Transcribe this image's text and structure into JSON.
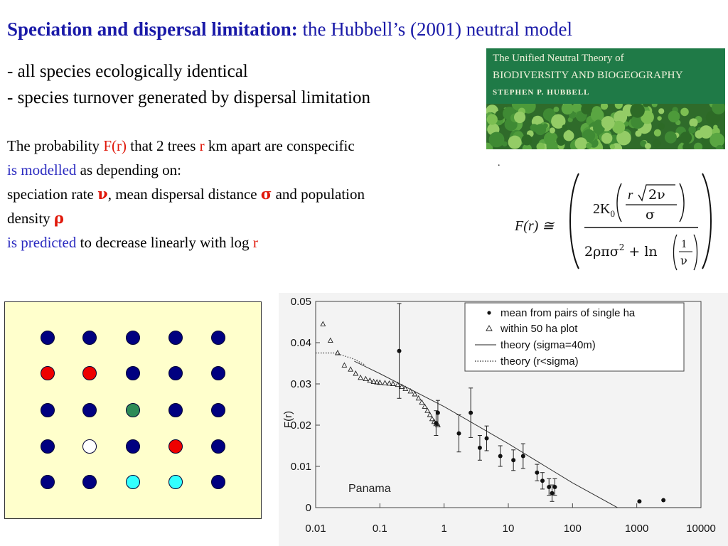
{
  "title": {
    "bold": "Speciation and dispersal limitation:",
    "rest": " the Hubbell’s (2001) neutral model"
  },
  "bullets": [
    "- all species ecologically identical",
    "- species turnover generated by dispersal limitation"
  ],
  "paragraph": {
    "l1_a": "The probability ",
    "l1_fr": "F(r)",
    "l1_b": " that 2 trees ",
    "l1_r": "r",
    "l1_c": " km apart are conspecific",
    "l2_a": "is modelled",
    "l2_b": " as depending on:",
    "l3_a": "speciation rate ",
    "l3_nu": "ν",
    "l3_b": ", mean dispersal distance ",
    "l3_sigma": "σ",
    "l3_c": " and population",
    "l4_a": "density ",
    "l4_rho": "ρ",
    "l5_a": "is predicted",
    "l5_b": " to decrease linearly with log ",
    "l5_r": "r"
  },
  "book": {
    "line1": "The Unified Neutral Theory of",
    "line2": "BIODIVERSITY AND BIOGEOGRAPHY",
    "author": "STEPHEN P. HUBBELL"
  },
  "stray_dot": ".",
  "formula": {
    "lhs": "F(r) ≅",
    "num_a": "2K",
    "num_sub": "0",
    "num_r": "r",
    "num_root": "2ν",
    "num_sigma": "σ",
    "den_a": "2ρπσ",
    "den_exp": "2",
    "den_b": " + ln",
    "den_one": "1",
    "den_nu": "ν"
  },
  "dot_grid": {
    "colors": {
      "navy": "#000080",
      "red": "#ee0000",
      "green": "#2e8b57",
      "white": "#ffffff",
      "cyan": "#33ffff"
    },
    "rows": [
      [
        "navy",
        "navy",
        "navy",
        "navy",
        "navy"
      ],
      [
        "red",
        "red",
        "navy",
        "navy",
        "navy"
      ],
      [
        "navy",
        "navy",
        "green",
        "navy",
        "navy"
      ],
      [
        "navy",
        "white",
        "navy",
        "red",
        "navy"
      ],
      [
        "navy",
        "navy",
        "cyan",
        "cyan",
        "navy"
      ]
    ]
  },
  "chart_data": {
    "type": "scatter",
    "xscale": "log",
    "xlim": [
      0.01,
      10000
    ],
    "ylim": [
      0,
      0.05
    ],
    "ylabel": "F(r)",
    "x_tick_labels": [
      "0.01",
      "0.1",
      "1",
      "10",
      "100",
      "1000",
      "10000"
    ],
    "x_ticks": [
      0.01,
      0.1,
      1,
      10,
      100,
      1000,
      10000
    ],
    "y_tick_labels": [
      "0",
      "0.01",
      "0.02",
      "0.03",
      "0.04",
      "0.05"
    ],
    "y_ticks": [
      0,
      0.01,
      0.02,
      0.03,
      0.04,
      0.05
    ],
    "annotation": "Panama",
    "legend_position": "top-right",
    "legend": [
      {
        "label": "mean from pairs of single ha",
        "marker": "dot"
      },
      {
        "label": "within 50 ha plot",
        "marker": "triangle"
      },
      {
        "label": "theory (sigma=40m)",
        "marker": "solid-line"
      },
      {
        "label": "theory (r<sigma)",
        "marker": "dotted-line"
      }
    ],
    "series": [
      {
        "name": "mean from pairs of single ha",
        "x": [
          0.2,
          0.75,
          0.8,
          1.7,
          2.6,
          3.6,
          4.6,
          7.5,
          12,
          17,
          28,
          34,
          43,
          48,
          53,
          1100,
          2600
        ],
        "y": [
          0.038,
          0.0205,
          0.023,
          0.018,
          0.023,
          0.0145,
          0.0168,
          0.0125,
          0.0115,
          0.0125,
          0.0085,
          0.0065,
          0.005,
          0.0035,
          0.005,
          0.0015,
          0.0018
        ],
        "err": [
          0.0115,
          0.003,
          0.003,
          0.0045,
          0.006,
          0.003,
          0.003,
          0.0025,
          0.0025,
          0.003,
          0.002,
          0.002,
          0.002,
          0.002,
          0.002,
          0,
          0
        ]
      },
      {
        "name": "within 50 ha plot",
        "x": [
          0.013,
          0.017,
          0.022,
          0.028,
          0.035,
          0.042,
          0.05,
          0.06,
          0.07,
          0.08,
          0.09,
          0.1,
          0.12,
          0.14,
          0.16,
          0.19,
          0.22,
          0.25,
          0.3,
          0.35,
          0.4,
          0.45,
          0.5,
          0.55,
          0.6,
          0.65,
          0.7,
          0.75,
          0.8
        ],
        "y": [
          0.0445,
          0.0405,
          0.0375,
          0.0345,
          0.0335,
          0.0325,
          0.0315,
          0.0312,
          0.0308,
          0.0305,
          0.0304,
          0.0303,
          0.0302,
          0.0301,
          0.03,
          0.0298,
          0.0293,
          0.0288,
          0.0282,
          0.0275,
          0.0265,
          0.0255,
          0.0245,
          0.0235,
          0.0225,
          0.0215,
          0.0208,
          0.0203,
          0.02
        ]
      },
      {
        "name": "theory (sigma=40m)",
        "x": [
          0.04,
          0.1,
          1,
          10,
          100,
          500,
          10000
        ],
        "y": [
          0.0355,
          0.0325,
          0.0245,
          0.0155,
          0.006,
          0,
          0
        ]
      },
      {
        "name": "theory (r<sigma)",
        "x": [
          0.01,
          0.02,
          0.04,
          0.06
        ],
        "y": [
          0.0375,
          0.0375,
          0.036,
          0.0345
        ]
      }
    ]
  }
}
